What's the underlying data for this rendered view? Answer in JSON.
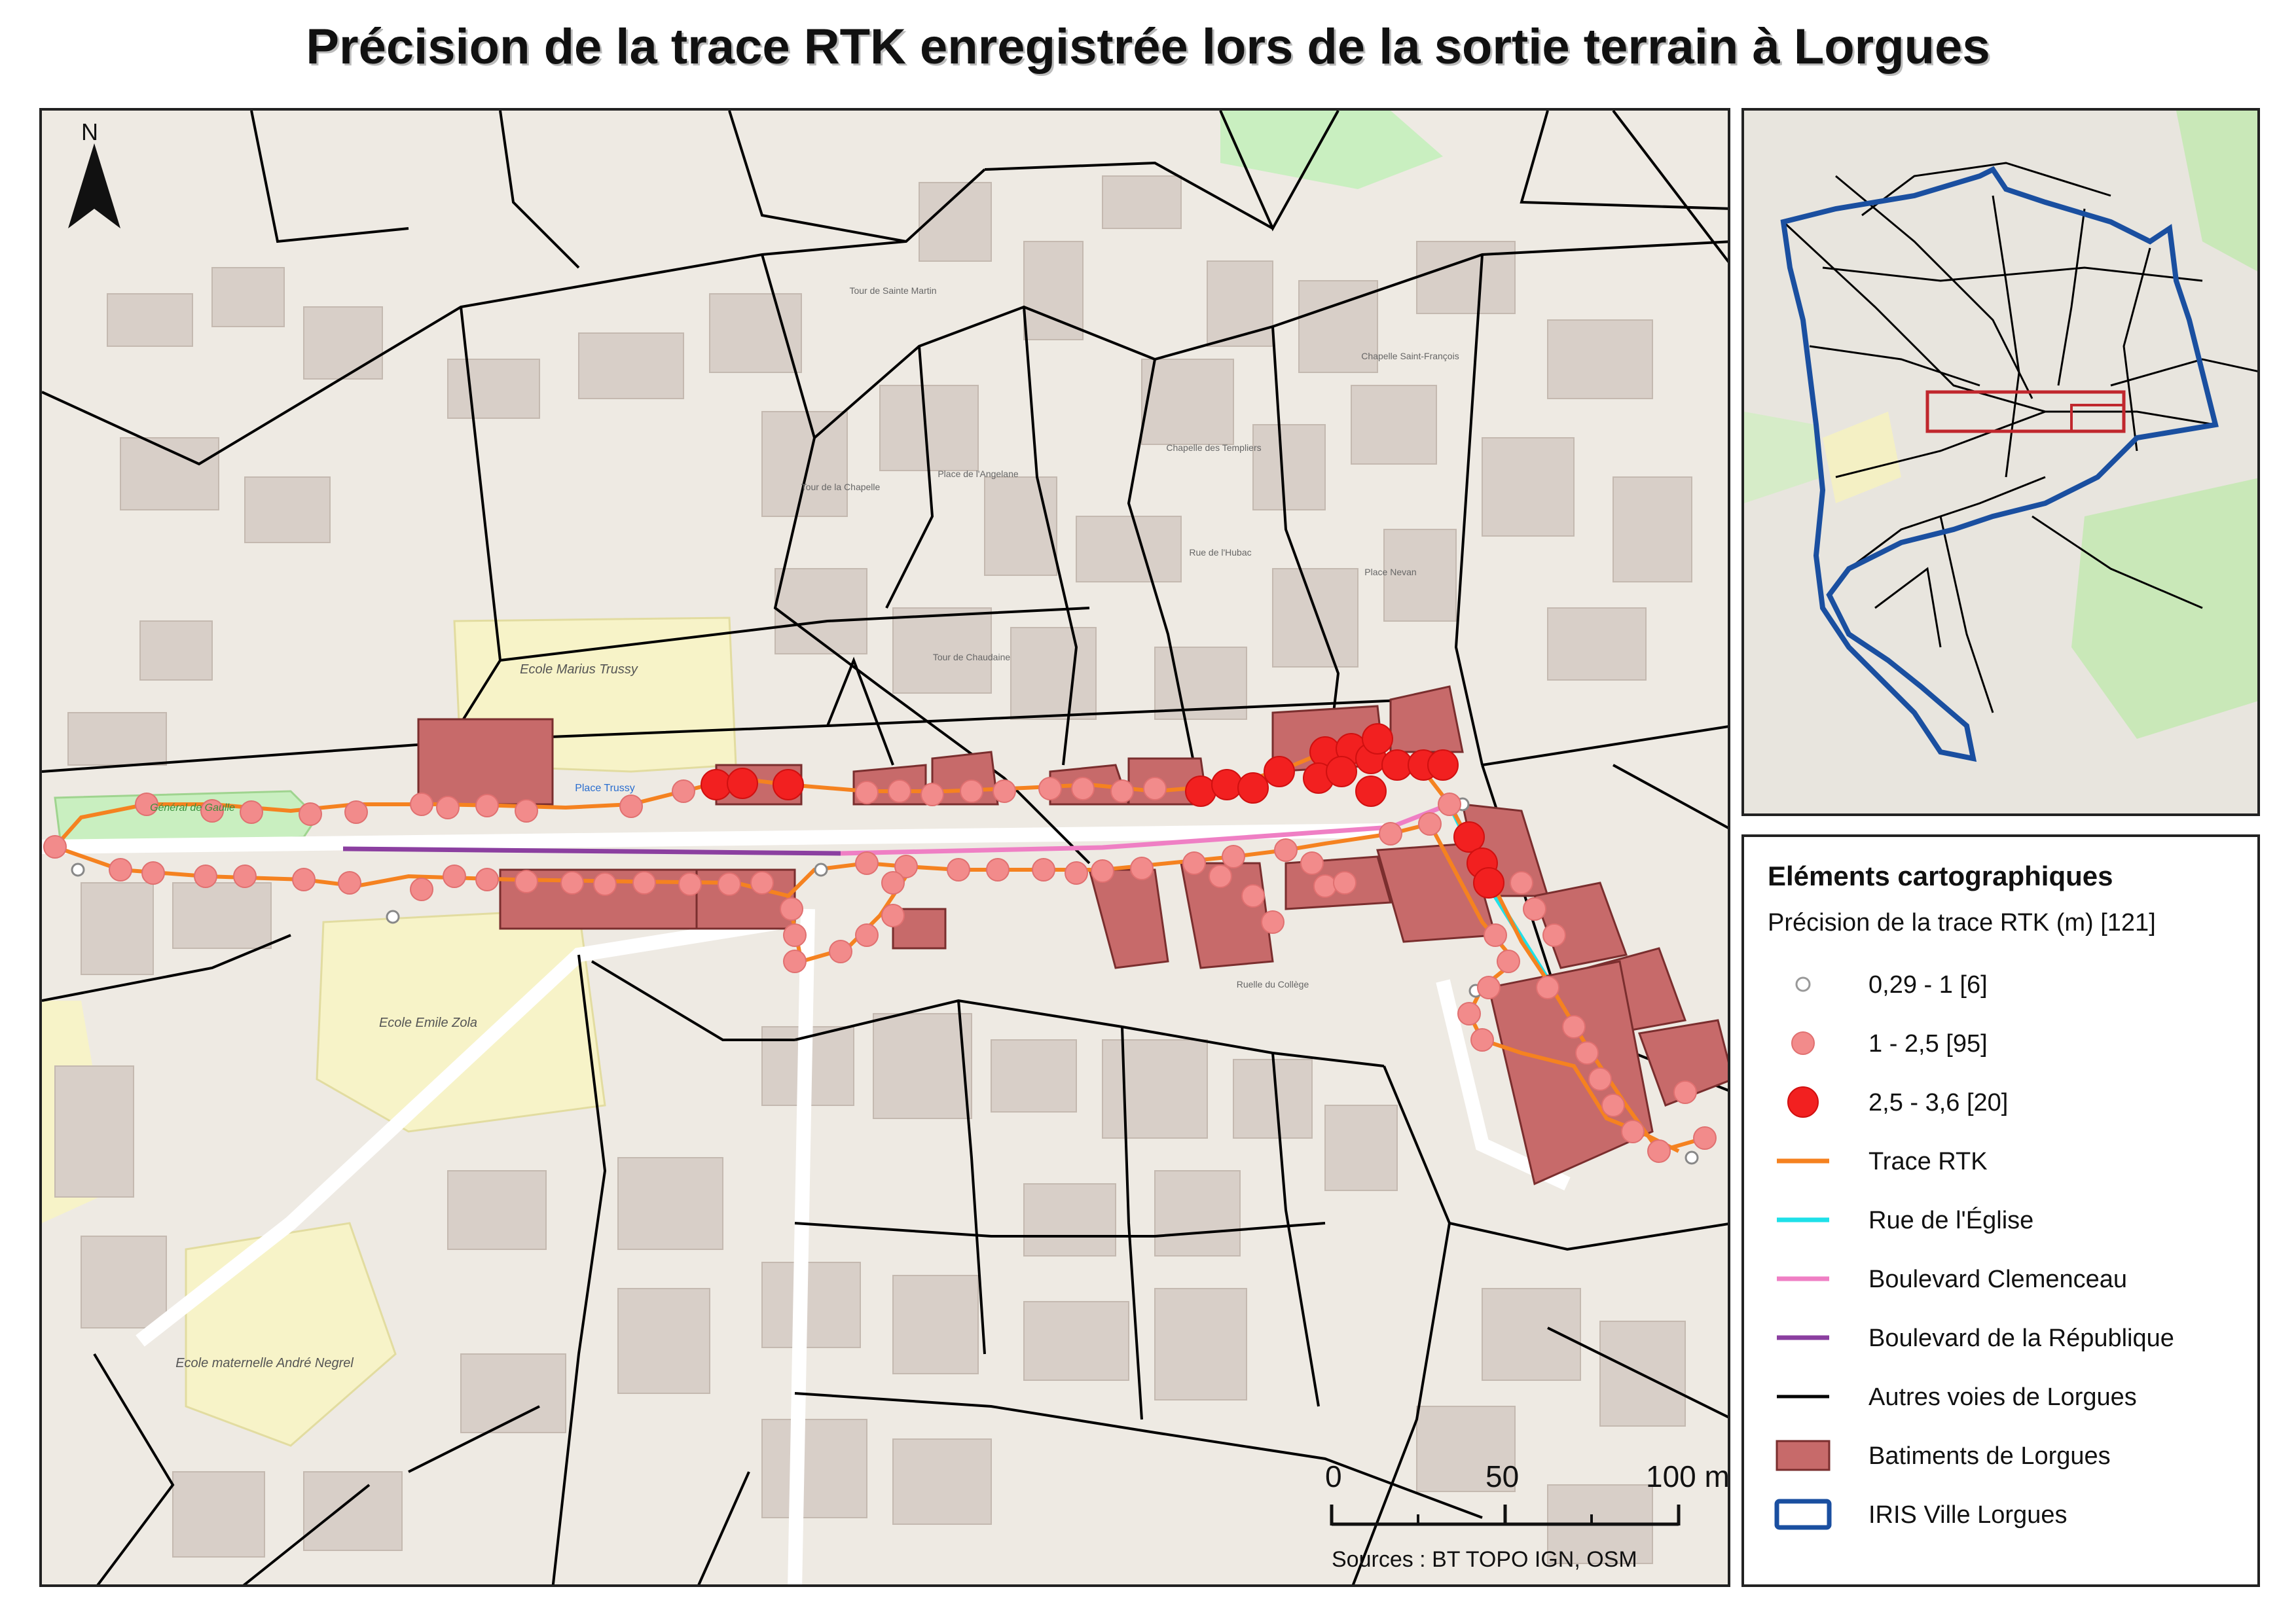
{
  "title": "Précision de la trace RTK enregistrée lors de la sortie terrain à Lorgues",
  "north_label": "N",
  "scale": {
    "labels": [
      "0",
      "50",
      "100 m"
    ]
  },
  "sources": "Sources : BT TOPO IGN, OSM",
  "legend": {
    "title": "Eléments cartographiques",
    "subtitle": "Précision de la trace RTK (m) [121]",
    "items": [
      {
        "label": "0,29 - 1 [6]",
        "symbol": "point",
        "color": "#ffffff",
        "stroke": "#999999",
        "size": "small"
      },
      {
        "label": "1 - 2,5 [95]",
        "symbol": "point",
        "color": "#f28b8b",
        "stroke": "#e07070",
        "size": "medium"
      },
      {
        "label": "2,5 - 3,6 [20]",
        "symbol": "point",
        "color": "#f22020",
        "stroke": "#d01010",
        "size": "large"
      },
      {
        "label": "Trace RTK",
        "symbol": "line",
        "color": "#f58220"
      },
      {
        "label": "Rue de l'Église",
        "symbol": "line",
        "color": "#1ee0e8"
      },
      {
        "label": "Boulevard Clemenceau",
        "symbol": "line",
        "color": "#ef7fc4"
      },
      {
        "label": "Boulevard de la République",
        "symbol": "line",
        "color": "#8b3fa0"
      },
      {
        "label": "Autres voies de Lorgues",
        "symbol": "line",
        "color": "#000000"
      },
      {
        "label": "Batiments de Lorgues",
        "symbol": "polygon",
        "color": "#c76a6a",
        "stroke": "#7a2e2e"
      },
      {
        "label": "IRIS Ville Lorgues",
        "symbol": "outline",
        "color": "#1a4fa0"
      }
    ]
  },
  "map_labels": {
    "school_marius": "Ecole Marius Trussy",
    "school_zola": "Ecole Emile Zola",
    "school_maternelle": "Ecole maternelle André Negrel",
    "place_trussy": "Place Trussy",
    "general_gaulle": "Général de Gaulle",
    "tour_chapelle": "Tour de la Chapelle",
    "tour_sainte_martin": "Tour de Sainte Martin",
    "place_angelane": "Place de l'Angelane",
    "chapelle_templiers": "Chapelle des Templiers",
    "rue_hubac": "Rue de l'Hubac",
    "place_nevan": "Place Nevan",
    "chapelle_francois": "Chapelle Saint-François",
    "ruelle_college": "Ruelle du Collège",
    "tour_chaudaine": "Tour de Chaudaine"
  },
  "colors": {
    "street_white": "#ffffff",
    "street_border": "#c8c2b8",
    "building_gray": "#d8cfc8",
    "park_green": "#c9efc0",
    "school_yellow": "#f7f3c8",
    "iris_blue": "#1a4fa0",
    "extent_red": "#c0272d"
  }
}
